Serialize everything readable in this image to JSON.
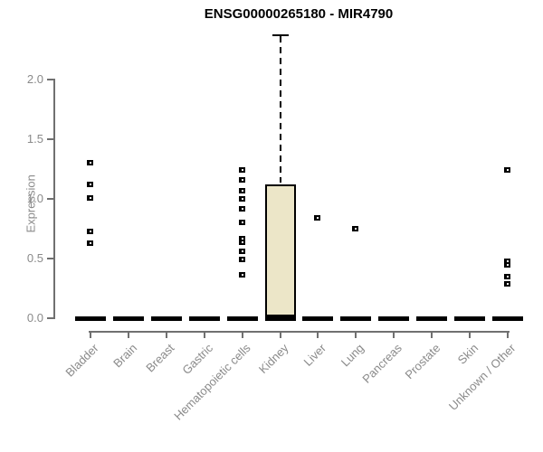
{
  "title": "ENSG00000265180 - MIR4790",
  "chart_data": {
    "type": "boxplot",
    "title": "ENSG00000265180 - MIR4790",
    "xlabel": "",
    "ylabel": "Expression",
    "ylim": [
      0,
      2.4
    ],
    "yticks": [
      "0.0",
      "0.5",
      "1.0",
      "1.5",
      "2.0"
    ],
    "ytick_values": [
      0.0,
      0.5,
      1.0,
      1.5,
      2.0
    ],
    "grid": false,
    "legend": "none",
    "categories": [
      "Bladder",
      "Brain",
      "Breast",
      "Gastric",
      "Hematopoietic cells",
      "Kidney",
      "Liver",
      "Lung",
      "Pancreas",
      "Prostate",
      "Skin",
      "Unknown / Other"
    ],
    "boxes": [
      {
        "category": "Bladder",
        "median": 0,
        "q1": 0,
        "q3": 0,
        "whisker_low": 0,
        "whisker_high": 0,
        "outliers": [
          1.3,
          1.12,
          1.01,
          0.73,
          0.63
        ]
      },
      {
        "category": "Brain",
        "median": 0,
        "q1": 0,
        "q3": 0,
        "whisker_low": 0,
        "whisker_high": 0,
        "outliers": []
      },
      {
        "category": "Breast",
        "median": 0,
        "q1": 0,
        "q3": 0,
        "whisker_low": 0,
        "whisker_high": 0,
        "outliers": []
      },
      {
        "category": "Gastric",
        "median": 0,
        "q1": 0,
        "q3": 0,
        "whisker_low": 0,
        "whisker_high": 0,
        "outliers": []
      },
      {
        "category": "Hematopoietic cells",
        "median": 0,
        "q1": 0,
        "q3": 0,
        "whisker_low": 0,
        "whisker_high": 0,
        "outliers": [
          1.24,
          1.16,
          1.07,
          1.0,
          0.92,
          0.8,
          0.67,
          0.64,
          0.56,
          0.49,
          0.36
        ]
      },
      {
        "category": "Kidney",
        "median": 0.01,
        "q1": 0,
        "q3": 1.12,
        "whisker_low": 0,
        "whisker_high": 2.37,
        "outliers": []
      },
      {
        "category": "Liver",
        "median": 0,
        "q1": 0,
        "q3": 0,
        "whisker_low": 0,
        "whisker_high": 0,
        "outliers": [
          0.84
        ]
      },
      {
        "category": "Lung",
        "median": 0,
        "q1": 0,
        "q3": 0,
        "whisker_low": 0,
        "whisker_high": 0,
        "outliers": [
          0.75
        ]
      },
      {
        "category": "Pancreas",
        "median": 0,
        "q1": 0,
        "q3": 0,
        "whisker_low": 0,
        "whisker_high": 0,
        "outliers": []
      },
      {
        "category": "Prostate",
        "median": 0,
        "q1": 0,
        "q3": 0,
        "whisker_low": 0,
        "whisker_high": 0,
        "outliers": []
      },
      {
        "category": "Skin",
        "median": 0,
        "q1": 0,
        "q3": 0,
        "whisker_low": 0,
        "whisker_high": 0,
        "outliers": []
      },
      {
        "category": "Unknown / Other",
        "median": 0,
        "q1": 0,
        "q3": 0,
        "whisker_low": 0,
        "whisker_high": 0,
        "outliers": [
          1.24,
          0.48,
          0.45,
          0.35,
          0.29
        ]
      }
    ],
    "colors": {
      "box_fill": "#ECE6C8",
      "box_border": "#000000",
      "outlier": "#000000",
      "axis_line": "#707070",
      "axis_text": "#8A8A8A",
      "title_text": "#000000",
      "background": "#FFFFFF"
    }
  }
}
